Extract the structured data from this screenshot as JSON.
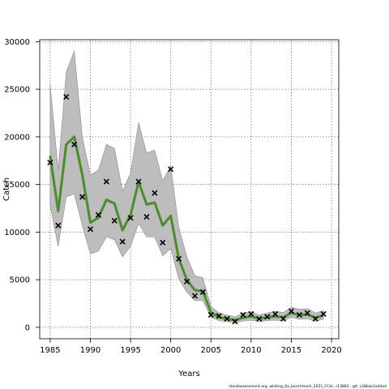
{
  "chart_data": {
    "type": "line",
    "xlabel": "Years",
    "ylabel": "Catch",
    "xlim": [
      1983.7,
      2020.9
    ],
    "ylim": [
      -1200,
      30200
    ],
    "x_ticks": [
      1985,
      1990,
      1995,
      2000,
      2005,
      2010,
      2015,
      2020
    ],
    "y_ticks": [
      0,
      5000,
      10000,
      15000,
      20000,
      25000,
      30000
    ],
    "grid": true,
    "footnote": "stockassessment.org, whiting_6a_benchmark_2021_FC4c, r13893 , git: c28bdc2a44ad",
    "colors": {
      "band": "#bdbdbd",
      "band_outline": "#8a8a8a",
      "line_a": "#6b8e23",
      "line_b": "#2e8b57",
      "marker": "#000000"
    },
    "years": [
      1985,
      1986,
      1987,
      1988,
      1989,
      1990,
      1991,
      1992,
      1993,
      1994,
      1995,
      1996,
      1997,
      1998,
      1999,
      2000,
      2001,
      2002,
      2003,
      2004,
      2005,
      2006,
      2007,
      2008,
      2009,
      2010,
      2011,
      2012,
      2013,
      2014,
      2015,
      2016,
      2017,
      2018,
      2019
    ],
    "estimate": [
      18000,
      12200,
      19200,
      20000,
      16000,
      11000,
      11500,
      13400,
      13000,
      10200,
      11800,
      15300,
      12900,
      13100,
      10700,
      11700,
      7200,
      5000,
      3900,
      3800,
      1550,
      1050,
      900,
      750,
      1000,
      1150,
      900,
      1050,
      1150,
      1050,
      1500,
      1300,
      1350,
      1000,
      1250
    ],
    "upper": [
      25500,
      16500,
      26800,
      29000,
      20000,
      16000,
      16500,
      19200,
      18800,
      14300,
      16200,
      21500,
      18300,
      18600,
      15400,
      16900,
      10500,
      7400,
      5400,
      5200,
      2200,
      1500,
      1300,
      1100,
      1500,
      1650,
      1300,
      1500,
      1700,
      1550,
      2100,
      1900,
      1950,
      1500,
      1750
    ],
    "lower": [
      12800,
      8500,
      13700,
      14000,
      10700,
      7700,
      8000,
      9500,
      9200,
      7400,
      8500,
      10900,
      9500,
      9500,
      7500,
      8300,
      5100,
      3700,
      2800,
      2800,
      1050,
      700,
      600,
      500,
      650,
      750,
      600,
      700,
      750,
      700,
      1050,
      850,
      900,
      650,
      850
    ],
    "observed": [
      17300,
      10700,
      24200,
      19200,
      13700,
      10300,
      11800,
      15300,
      11200,
      9000,
      11500,
      15300,
      11600,
      14100,
      8900,
      16600,
      7200,
      4800,
      3300,
      3700,
      1300,
      1200,
      900,
      600,
      1300,
      1400,
      900,
      1100,
      1400,
      900,
      1700,
      1300,
      1500,
      900,
      1400
    ]
  }
}
